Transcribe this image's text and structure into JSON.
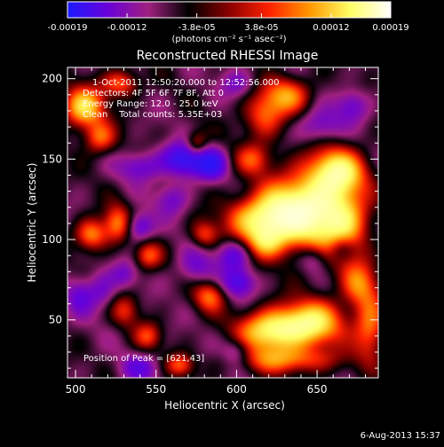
{
  "chart_data": {
    "type": "heatmap",
    "title": "Reconstructed RHESSI Image",
    "xlabel": "Heliocentric X (arcsec)",
    "ylabel": "Heliocentric Y (arcsec)",
    "xlim": [
      495,
      688
    ],
    "ylim": [
      14,
      207
    ],
    "x_ticks": [
      500,
      550,
      600,
      650
    ],
    "y_ticks": [
      50,
      100,
      150,
      200
    ],
    "colorbar": {
      "tick_labels": [
        "-0.00019",
        "-0.00012",
        "-3.8e-05",
        "3.8e-05",
        "0.00012",
        "0.00019"
      ],
      "tick_values": [
        -0.00019,
        -0.00012,
        -3.8e-05,
        3.8e-05,
        0.00012,
        0.00019
      ],
      "range": [
        -0.00019,
        0.00019
      ],
      "units_label": "(photons cm⁻² s⁻¹ asec⁻²)",
      "colors": [
        "#1a1aff",
        "#6a00d8",
        "#a02080",
        "#000000",
        "#8b0000",
        "#ff2200",
        "#ff9900",
        "#ffff66",
        "#ffffff"
      ]
    },
    "annotations": {
      "time_range": "1-Oct-2011 12:50:20.000 to 12:52:56.000",
      "detectors": "Detectors: 4F 5F 6F 7F 8F, Att 0",
      "energy_range": "Energy Range: 12.0 - 25.0 keV",
      "method_counts": "Clean    Total counts: 5.35E+03",
      "peak": "Position of Peak = [621,43]"
    },
    "footer_date": "6-Aug-2013 15:37",
    "sources": [
      {
        "x": 632,
        "y": 115,
        "amp": 1.0,
        "sx": 16,
        "sy": 14
      },
      {
        "x": 612,
        "y": 112,
        "amp": 0.6,
        "sx": 14,
        "sy": 10
      },
      {
        "x": 655,
        "y": 125,
        "amp": 0.75,
        "sx": 15,
        "sy": 22
      },
      {
        "x": 668,
        "y": 108,
        "amp": 0.55,
        "sx": 10,
        "sy": 14
      },
      {
        "x": 664,
        "y": 142,
        "amp": 0.65,
        "sx": 11,
        "sy": 9
      },
      {
        "x": 618,
        "y": 98,
        "amp": 0.45,
        "sx": 8,
        "sy": 7
      },
      {
        "x": 621,
        "y": 43,
        "amp": 0.95,
        "sx": 14,
        "sy": 9
      },
      {
        "x": 647,
        "y": 48,
        "amp": 0.9,
        "sx": 14,
        "sy": 10
      },
      {
        "x": 683,
        "y": 45,
        "amp": 0.6,
        "sx": 7,
        "sy": 14
      },
      {
        "x": 676,
        "y": 72,
        "amp": 0.55,
        "sx": 8,
        "sy": 10
      },
      {
        "x": 632,
        "y": 25,
        "amp": 0.55,
        "sx": 22,
        "sy": 6
      },
      {
        "x": 583,
        "y": 65,
        "amp": 0.55,
        "sx": 7,
        "sy": 7
      },
      {
        "x": 580,
        "y": 103,
        "amp": 0.45,
        "sx": 6,
        "sy": 6
      },
      {
        "x": 575,
        "y": 158,
        "amp": 0.6,
        "sx": 5,
        "sy": 6
      },
      {
        "x": 617,
        "y": 177,
        "amp": 0.55,
        "sx": 9,
        "sy": 10
      },
      {
        "x": 632,
        "y": 190,
        "amp": 0.6,
        "sx": 10,
        "sy": 8
      },
      {
        "x": 610,
        "y": 150,
        "amp": 0.45,
        "sx": 8,
        "sy": 7
      },
      {
        "x": 505,
        "y": 182,
        "amp": 0.85,
        "sx": 9,
        "sy": 9
      },
      {
        "x": 515,
        "y": 163,
        "amp": 0.55,
        "sx": 7,
        "sy": 7
      },
      {
        "x": 528,
        "y": 197,
        "amp": 0.55,
        "sx": 8,
        "sy": 6
      },
      {
        "x": 510,
        "y": 103,
        "amp": 0.65,
        "sx": 7,
        "sy": 7
      },
      {
        "x": 526,
        "y": 110,
        "amp": 0.6,
        "sx": 6,
        "sy": 8
      },
      {
        "x": 545,
        "y": 90,
        "amp": 0.5,
        "sx": 6,
        "sy": 6
      },
      {
        "x": 531,
        "y": 56,
        "amp": 0.4,
        "sx": 6,
        "sy": 7
      },
      {
        "x": 545,
        "y": 40,
        "amp": 0.45,
        "sx": 6,
        "sy": 6
      },
      {
        "x": 565,
        "y": 22,
        "amp": 0.5,
        "sx": 6,
        "sy": 5
      },
      {
        "x": 575,
        "y": 83,
        "amp": -0.35,
        "sx": 8,
        "sy": 8
      },
      {
        "x": 570,
        "y": 150,
        "amp": -0.9,
        "sx": 11,
        "sy": 7
      },
      {
        "x": 585,
        "y": 146,
        "amp": -0.55,
        "sx": 6,
        "sy": 6
      },
      {
        "x": 598,
        "y": 90,
        "amp": -0.5,
        "sx": 7,
        "sy": 7
      },
      {
        "x": 601,
        "y": 73,
        "amp": -0.55,
        "sx": 7,
        "sy": 6
      },
      {
        "x": 540,
        "y": 108,
        "amp": -0.5,
        "sx": 6,
        "sy": 6
      },
      {
        "x": 503,
        "y": 65,
        "amp": -0.4,
        "sx": 6,
        "sy": 8
      },
      {
        "x": 516,
        "y": 68,
        "amp": -0.35,
        "sx": 6,
        "sy": 8
      },
      {
        "x": 540,
        "y": 145,
        "amp": -0.4,
        "sx": 9,
        "sy": 6
      },
      {
        "x": 560,
        "y": 125,
        "amp": -0.35,
        "sx": 7,
        "sy": 7
      },
      {
        "x": 652,
        "y": 170,
        "amp": -0.45,
        "sx": 10,
        "sy": 8
      },
      {
        "x": 672,
        "y": 183,
        "amp": -0.4,
        "sx": 7,
        "sy": 7
      },
      {
        "x": 665,
        "y": 95,
        "amp": -0.35,
        "sx": 6,
        "sy": 6
      },
      {
        "x": 648,
        "y": 88,
        "amp": -0.3,
        "sx": 6,
        "sy": 6
      },
      {
        "x": 540,
        "y": 20,
        "amp": -0.4,
        "sx": 8,
        "sy": 6
      },
      {
        "x": 600,
        "y": 30,
        "amp": -0.35,
        "sx": 6,
        "sy": 6
      },
      {
        "x": 530,
        "y": 78,
        "amp": -0.3,
        "sx": 6,
        "sy": 6
      },
      {
        "x": 600,
        "y": 197,
        "amp": -0.3,
        "sx": 7,
        "sy": 6
      }
    ]
  }
}
